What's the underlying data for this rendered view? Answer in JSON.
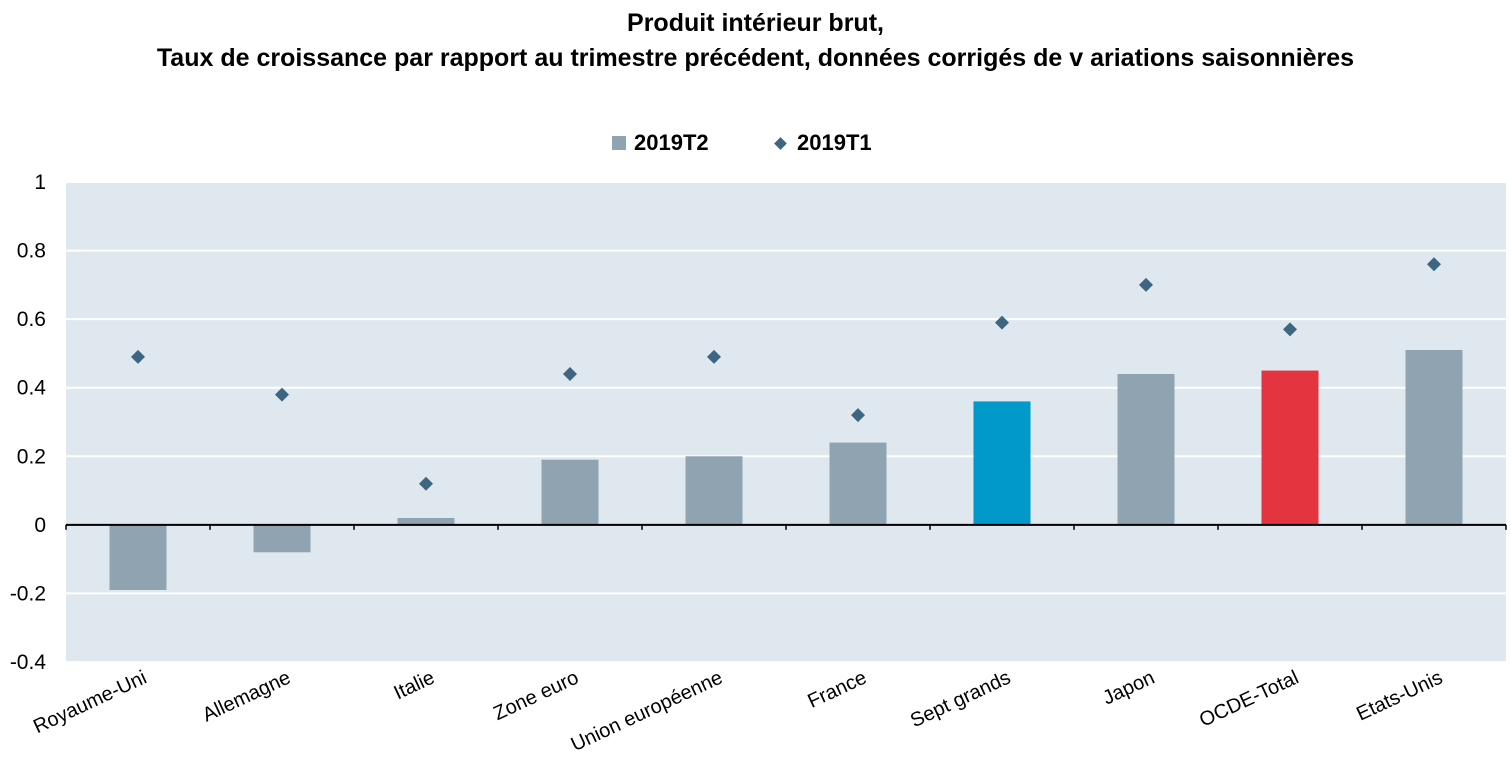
{
  "chart_data": {
    "type": "bar",
    "title": "Produit intérieur brut,",
    "subtitle": "Taux de croissance par rapport au trimestre précédent, données corrigés de v ariations saisonnières",
    "categories": [
      "Royaume-Uni",
      "Allemagne",
      "Italie",
      "Zone euro",
      "Union européenne",
      "France",
      "Sept grands",
      "Japon",
      "OCDE-Total",
      "Etats-Unis"
    ],
    "series": [
      {
        "name": "2019T2",
        "kind": "bar",
        "color": "#8fa3b0",
        "values": [
          -0.19,
          -0.08,
          0.02,
          0.19,
          0.2,
          0.24,
          0.36,
          0.44,
          0.45,
          0.51
        ],
        "highlight_colors": {
          "Sept grands": "#0099c9",
          "OCDE-Total": "#e3343f"
        }
      },
      {
        "name": "2019T1",
        "kind": "marker",
        "marker": "diamond",
        "color": "#3e6582",
        "values": [
          0.49,
          0.38,
          0.12,
          0.44,
          0.49,
          0.32,
          0.59,
          0.7,
          0.57,
          0.76
        ]
      }
    ],
    "ylim": [
      -0.4,
      1.0
    ],
    "yticks": [
      "-0.4",
      "-0.2",
      "0",
      "0.2",
      "0.4",
      "0.6",
      "0.8",
      "1"
    ],
    "ytick_values": [
      -0.4,
      -0.2,
      0,
      0.2,
      0.4,
      0.6,
      0.8,
      1.0
    ],
    "xlabel": "",
    "ylabel": "",
    "grid": true,
    "legend_position": "top-center",
    "plot_background": "#dfe8ee",
    "gridline_color": "#ffffff"
  }
}
